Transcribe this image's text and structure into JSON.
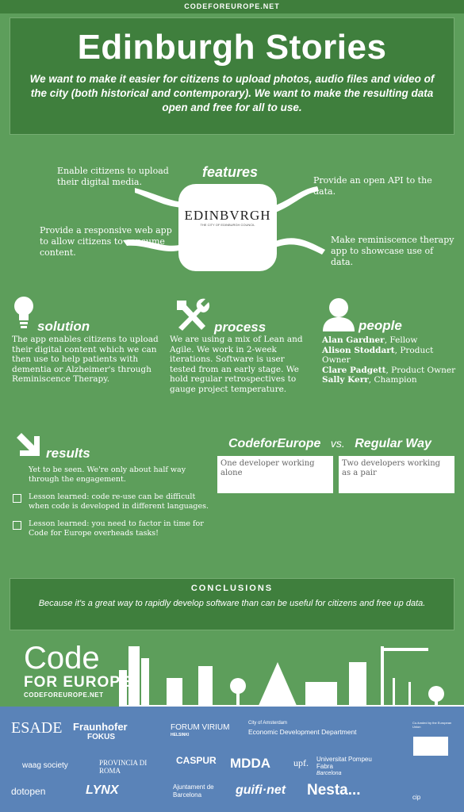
{
  "topbar": {
    "site": "CODEFOREUROPE.NET"
  },
  "hero": {
    "title": "Edinburgh Stories",
    "tagline": "We want to make it easier for citizens to upload photos, audio files and video of the city (both historical and contemporary). We want to make the resulting data open and free for all to use."
  },
  "features": {
    "title": "features",
    "logo_name": "EDINBVRGH",
    "logo_sub": "THE CITY OF EDINBURGH COUNCIL",
    "items": [
      "Enable citizens to upload their digital media.",
      "Provide an open API to the data.",
      "Provide a responsive web app to allow citizens to consume content.",
      "Make reminiscence therapy app to showcase use of data."
    ]
  },
  "solution": {
    "title": "solution",
    "text": "The app enables citizens to upload their digital content which we can then use to help patients with dementia or Alzheimer's through Reminiscence Therapy."
  },
  "process": {
    "title": "process",
    "text": "We are using a mix of Lean and Agile. We work in 2-week iterations. Software is user tested from an early stage. We hold regular retrospectives to gauge project temperature."
  },
  "people": {
    "title": "people",
    "members": [
      {
        "name": "Alan Gardner",
        "role": ", Fellow"
      },
      {
        "name": "Alison Stoddart",
        "role": ", Product Owner"
      },
      {
        "name": "Clare Padgett",
        "role": ", Product Owner"
      },
      {
        "name": "Sally Kerr",
        "role": ", Champion"
      }
    ]
  },
  "results": {
    "title": "results",
    "intro": "Yet to be seen. We're only about half way through the engagement.",
    "lessons": [
      "Lesson learned: code re-use can be difficult when code is developed in different languages.",
      "Lesson learned: you need to factor in time for Code for Europe overheads tasks!"
    ]
  },
  "comparison": {
    "left_title": "CodeforEurope",
    "vs": "vs.",
    "right_title": "Regular Way",
    "left_text": "One developer working alone",
    "right_text": "Two developers working as a pair"
  },
  "conclusions": {
    "title": "CONCLUSIONS",
    "text": "Because it's a great way to rapidly develop software than can be useful for citizens and free up data."
  },
  "footer": {
    "logo_line1": "Code",
    "logo_line2": "FOR EUROPE",
    "logo_url": "CODEFOREUROPE.NET",
    "partners": [
      "ESADE",
      "Fraunhofer",
      "FOKUS",
      "FORUM VIRIUM",
      "HELSINKI",
      "City of Amsterdam",
      "Economic Development Department",
      "Co-funded by the European Union",
      "waag society",
      "PROVINCIA DI ROMA",
      "CASPUR",
      "MDDA",
      "upf.",
      "Universitat Pompeu Fabra",
      "Barcelona",
      "dotopen",
      "LYNX",
      "Ajuntament de Barcelona",
      "guifi·net",
      "Nesta...",
      "cip"
    ]
  }
}
